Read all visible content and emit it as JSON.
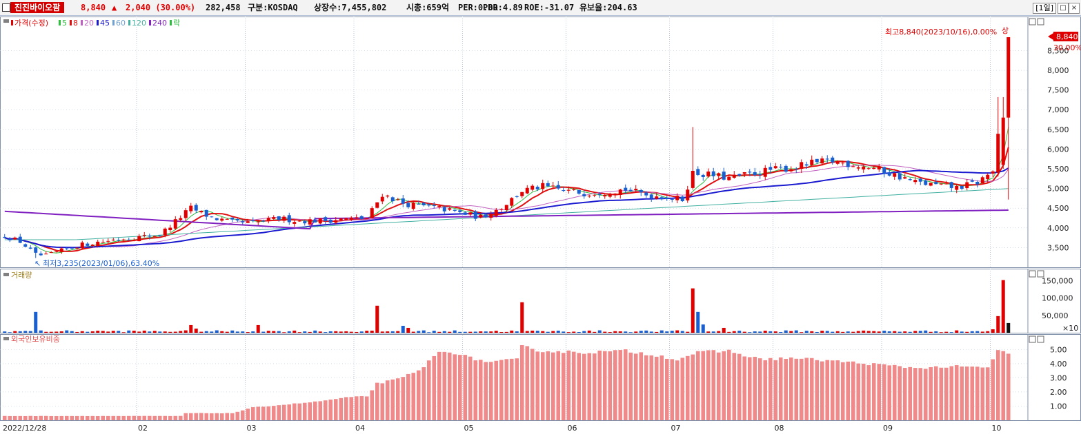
{
  "header": {
    "stock_name": "진진바이오팜",
    "price": "8,840",
    "change_arrow": "▲",
    "change": "2,040 (30.00%)",
    "volume": "282,458",
    "market": "구분:KOSDAQ",
    "shares": "상장수:7,455,802",
    "market_cap": "시총:659억",
    "per": "PER:0.00",
    "pbr": "PBR:4.89",
    "roe": "ROE:-31.07",
    "retention": "유보율:204.63",
    "period": "[1일]",
    "buttons": [
      "□",
      "×"
    ]
  },
  "colors": {
    "up": "#e00000",
    "down": "#1a5fd0",
    "ma5": "#2fbf3f",
    "ma8": "#e01010",
    "ma20": "#c060c0",
    "ma45": "#1b1bd0",
    "ma60": "#70a0d0",
    "ma120": "#40b0a0",
    "ma240": "#8020c0",
    "foreign": "#f08a8a",
    "grid": "#b9c7de"
  },
  "price_panel": {
    "legend": [
      {
        "label": "가격(수정)",
        "color": "#e00000"
      },
      {
        "label": "5",
        "color": "#2fbf3f"
      },
      {
        "label": "8",
        "color": "#e01010"
      },
      {
        "label": "20",
        "color": "#c060c0"
      },
      {
        "label": "45",
        "color": "#1b1bd0"
      },
      {
        "label": "60",
        "color": "#70a0d0"
      },
      {
        "label": "120",
        "color": "#40b0a0"
      },
      {
        "label": "240",
        "color": "#8020c0"
      },
      {
        "label": "락",
        "color": "#2fbf3f"
      }
    ],
    "high_annotation": "최고8,840(2023/10/16),0.00%",
    "high_mark": "상",
    "low_annotation": "최저3,235(2023/01/06),63.40%",
    "current_price_label": "8,840",
    "current_change_label": "30.00%"
  },
  "volume_panel": {
    "legend": "거래량",
    "unit_note": "×10"
  },
  "foreign_panel": {
    "legend": "외국인보유비중"
  },
  "chart_data": [
    {
      "type": "candlestick",
      "title": "가격(수정)",
      "ylim": [
        3000,
        8840
      ],
      "yticks": [
        3500,
        4000,
        4500,
        5000,
        5500,
        6000,
        6500,
        7000,
        7500,
        8000,
        8500
      ],
      "ytick_labels": [
        "3,500",
        "4,000",
        "4,500",
        "5,000",
        "5,500",
        "6,000",
        "6,500",
        "7,000",
        "7,500",
        "8,000",
        "8,500"
      ],
      "x_axis": {
        "first_label": "2022/12/28",
        "month_labels": [
          "02",
          "03",
          "04",
          "05",
          "06",
          "07",
          "08",
          "09",
          "10"
        ],
        "month_index": [
          26,
          47,
          68,
          89,
          109,
          129,
          149,
          170,
          191
        ]
      },
      "keypoints": [
        [
          0,
          3800
        ],
        [
          3,
          3650
        ],
        [
          6,
          3320
        ],
        [
          8,
          3290
        ],
        [
          11,
          3420
        ],
        [
          14,
          3550
        ],
        [
          18,
          3640
        ],
        [
          22,
          3720
        ],
        [
          26,
          3770
        ],
        [
          30,
          3830
        ],
        [
          36,
          4500
        ],
        [
          40,
          4260
        ],
        [
          44,
          4140
        ],
        [
          48,
          4120
        ],
        [
          53,
          4240
        ],
        [
          57,
          4180
        ],
        [
          62,
          4190
        ],
        [
          66,
          4230
        ],
        [
          70,
          4240
        ],
        [
          73,
          4860
        ],
        [
          77,
          4620
        ],
        [
          80,
          4560
        ],
        [
          84,
          4500
        ],
        [
          88,
          4380
        ],
        [
          92,
          4270
        ],
        [
          96,
          4520
        ],
        [
          100,
          4940
        ],
        [
          104,
          5050
        ],
        [
          108,
          4950
        ],
        [
          112,
          4880
        ],
        [
          116,
          4920
        ],
        [
          120,
          4980
        ],
        [
          124,
          4840
        ],
        [
          128,
          4780
        ],
        [
          131,
          4720
        ],
        [
          133,
          5400
        ],
        [
          136,
          5350
        ],
        [
          140,
          5260
        ],
        [
          144,
          5360
        ],
        [
          148,
          5470
        ],
        [
          152,
          5520
        ],
        [
          156,
          5640
        ],
        [
          160,
          5690
        ],
        [
          164,
          5610
        ],
        [
          168,
          5520
        ],
        [
          172,
          5340
        ],
        [
          176,
          5160
        ],
        [
          180,
          5080
        ],
        [
          184,
          5020
        ],
        [
          188,
          5150
        ],
        [
          191,
          5450
        ],
        [
          192,
          6300
        ],
        [
          193,
          8840
        ]
      ],
      "spikes": [
        {
          "index": 6,
          "low": 3235
        },
        {
          "index": 133,
          "high": 6560
        },
        {
          "index": 192,
          "high": 7320
        }
      ],
      "moving_averages": [
        {
          "name": "5",
          "color": "#2fbf3f"
        },
        {
          "name": "8",
          "color": "#e01010"
        },
        {
          "name": "20",
          "color": "#c060c0"
        },
        {
          "name": "45",
          "color": "#1b1bd0"
        },
        {
          "name": "120",
          "color": "#40b0a0"
        },
        {
          "name": "240",
          "color": "#8020c0"
        }
      ]
    },
    {
      "type": "bar",
      "title": "거래량",
      "ylim": [
        0,
        165000
      ],
      "yticks": [
        50000,
        100000,
        150000
      ],
      "ytick_labels": [
        "50,000",
        "100,000",
        "150,000"
      ],
      "unit_note": "×10",
      "base": 3500,
      "spikes": [
        {
          "index": 6,
          "value": 60000,
          "color": "down"
        },
        {
          "index": 36,
          "value": 22000,
          "color": "up"
        },
        {
          "index": 37,
          "value": 12000,
          "color": "up"
        },
        {
          "index": 49,
          "value": 22000,
          "color": "up"
        },
        {
          "index": 72,
          "value": 78000,
          "color": "up"
        },
        {
          "index": 77,
          "value": 20000,
          "color": "down"
        },
        {
          "index": 78,
          "value": 14000,
          "color": "up"
        },
        {
          "index": 100,
          "value": 88000,
          "color": "up"
        },
        {
          "index": 133,
          "value": 128000,
          "color": "up"
        },
        {
          "index": 134,
          "value": 60000,
          "color": "down"
        },
        {
          "index": 135,
          "value": 24000,
          "color": "down"
        },
        {
          "index": 139,
          "value": 14000,
          "color": "up"
        },
        {
          "index": 191,
          "value": 10000,
          "color": "up"
        },
        {
          "index": 192,
          "value": 48000,
          "color": "up"
        },
        {
          "index": 193,
          "value": 152000,
          "color": "up"
        },
        {
          "index": 194,
          "value": 28000,
          "color": "black"
        }
      ]
    },
    {
      "type": "bar",
      "title": "외국인보유비중",
      "ylim": [
        0,
        5.7
      ],
      "yticks": [
        1.0,
        2.0,
        3.0,
        4.0,
        5.0
      ],
      "ytick_labels": [
        "1.00",
        "2.00",
        "3.00",
        "4.00",
        "5.00"
      ],
      "keypoints": [
        [
          0,
          0.3
        ],
        [
          34,
          0.3
        ],
        [
          35,
          0.5
        ],
        [
          44,
          0.5
        ],
        [
          48,
          0.9
        ],
        [
          54,
          1.1
        ],
        [
          60,
          1.3
        ],
        [
          66,
          1.6
        ],
        [
          70,
          1.7
        ],
        [
          72,
          2.6
        ],
        [
          76,
          2.9
        ],
        [
          80,
          3.5
        ],
        [
          84,
          4.8
        ],
        [
          86,
          4.9
        ],
        [
          90,
          4.4
        ],
        [
          94,
          4.1
        ],
        [
          99,
          4.3
        ],
        [
          100,
          5.2
        ],
        [
          104,
          4.9
        ],
        [
          112,
          4.8
        ],
        [
          120,
          4.9
        ],
        [
          126,
          4.6
        ],
        [
          130,
          4.3
        ],
        [
          134,
          4.8
        ],
        [
          140,
          4.9
        ],
        [
          146,
          4.3
        ],
        [
          152,
          4.4
        ],
        [
          160,
          4.2
        ],
        [
          170,
          3.9
        ],
        [
          176,
          3.7
        ],
        [
          184,
          3.8
        ],
        [
          190,
          3.7
        ],
        [
          192,
          5.0
        ],
        [
          194,
          4.7
        ]
      ]
    }
  ]
}
